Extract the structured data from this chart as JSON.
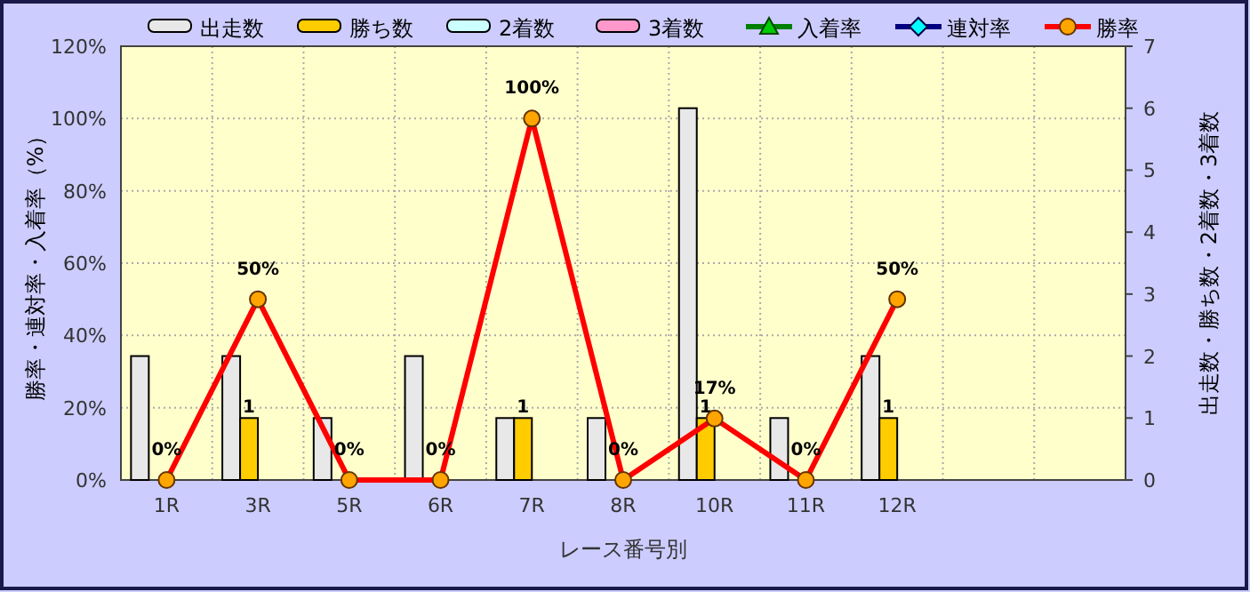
{
  "chart_data": {
    "type": "bar",
    "categories": [
      "1R",
      "3R",
      "5R",
      "6R",
      "7R",
      "8R",
      "10R",
      "11R",
      "12R",
      null,
      null
    ],
    "xlabel": "レース番号別",
    "ylabel": "勝率・連対率・入着率（%）",
    "y2label": "出走数・勝ち数・2着数・3着数",
    "ylim": [
      0,
      120
    ],
    "yticks": [
      {
        "value": 0,
        "label": "0%"
      },
      {
        "value": 20,
        "label": "20%"
      },
      {
        "value": 40,
        "label": "40%"
      },
      {
        "value": 60,
        "label": "60%"
      },
      {
        "value": 80,
        "label": "80%"
      },
      {
        "value": 100,
        "label": "100%"
      },
      {
        "value": 120,
        "label": "120%"
      }
    ],
    "y2lim": [
      0,
      7
    ],
    "y2ticks": [
      0,
      1,
      2,
      3,
      4,
      5,
      6,
      7
    ],
    "grid": true,
    "legend": "top",
    "series": [
      {
        "name": "出走数",
        "axis": "y2",
        "color": "#e8e8e8",
        "values": [
          2,
          2,
          1,
          2,
          1,
          1,
          6,
          1,
          2,
          null,
          null
        ]
      },
      {
        "name": "勝ち数",
        "axis": "y2",
        "color": "#ffcc00",
        "values": [
          0,
          1,
          0,
          0,
          1,
          0,
          1,
          0,
          1,
          null,
          null
        ],
        "value_labels": [
          null,
          "1",
          null,
          null,
          "1",
          null,
          "1",
          null,
          "1",
          null,
          null
        ]
      },
      {
        "name": "2着数",
        "axis": "y2",
        "color": "#ccffff",
        "values": [
          0,
          0,
          0,
          0,
          0,
          0,
          0,
          0,
          0,
          null,
          null
        ]
      },
      {
        "name": "3着数",
        "axis": "y2",
        "color": "#ff99cc",
        "values": [
          0,
          0,
          0,
          0,
          0,
          0,
          0,
          0,
          0,
          null,
          null
        ]
      },
      {
        "name": "入着率",
        "type": "line",
        "color": "#008000",
        "marker": "triangle",
        "values": [
          null,
          null,
          null,
          null,
          null,
          null,
          null,
          null,
          null,
          null,
          null
        ]
      },
      {
        "name": "連対率",
        "type": "line",
        "color": "#000080",
        "marker": "diamond",
        "values": [
          null,
          null,
          null,
          null,
          null,
          null,
          null,
          null,
          null,
          null,
          null
        ]
      },
      {
        "name": "勝率",
        "type": "line",
        "color": "#ff0000",
        "marker": "circle",
        "values": [
          0,
          50,
          0,
          0,
          100,
          0,
          17,
          0,
          50,
          null,
          null
        ],
        "value_labels": [
          "0%",
          "50%",
          "0%",
          "0%",
          "100%",
          "0%",
          "17%",
          "0%",
          "50%",
          null,
          null
        ]
      }
    ]
  }
}
